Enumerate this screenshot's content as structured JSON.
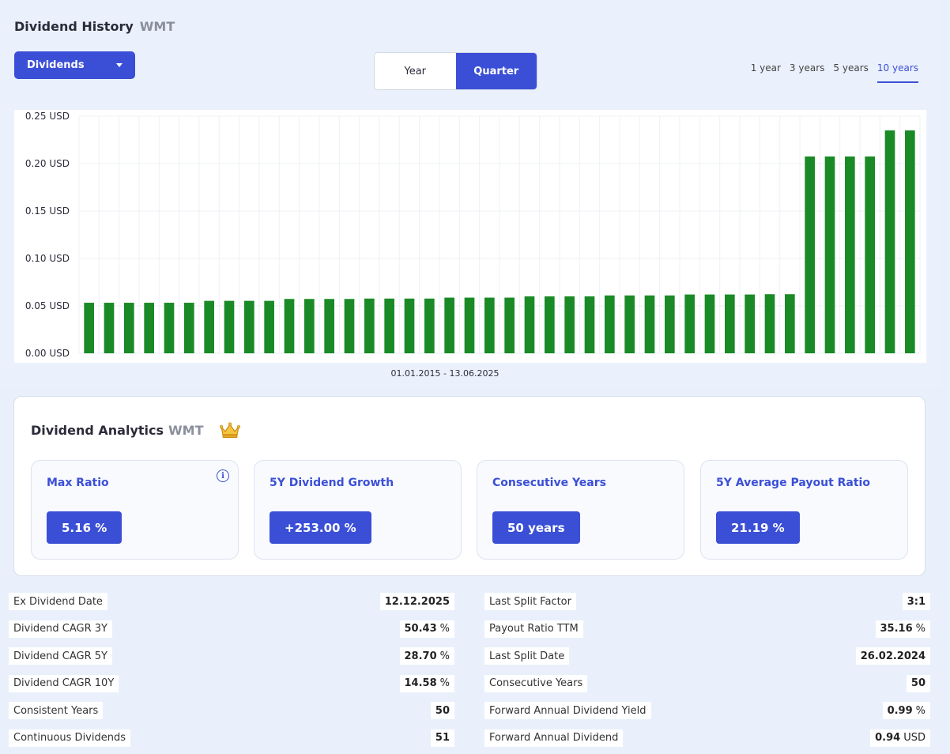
{
  "history": {
    "title": "Dividend History",
    "ticker": "WMT",
    "select_value": "Dividends",
    "period_tabs": [
      "Year",
      "Quarter"
    ],
    "period_active": "Quarter",
    "ranges": [
      "1 year",
      "3 years",
      "5 years",
      "10 years"
    ],
    "range_active": "10 years",
    "date_range": "01.01.2015 - 13.06.2025"
  },
  "chart_data": {
    "type": "bar",
    "title": "",
    "xlabel": "01.01.2015 - 13.06.2025",
    "ylabel": "",
    "ylim": [
      0,
      0.25
    ],
    "yticks": [
      "0.00 USD",
      "0.05 USD",
      "0.10 USD",
      "0.15 USD",
      "0.20 USD",
      "0.25 USD"
    ],
    "grid": true,
    "color": "#1a8a26",
    "values": [
      0.0533,
      0.0533,
      0.0533,
      0.0533,
      0.0533,
      0.0533,
      0.0553,
      0.0553,
      0.0553,
      0.0553,
      0.0573,
      0.0573,
      0.0573,
      0.0573,
      0.0577,
      0.0577,
      0.0577,
      0.0577,
      0.0587,
      0.0587,
      0.0587,
      0.0587,
      0.06,
      0.06,
      0.06,
      0.06,
      0.061,
      0.061,
      0.061,
      0.061,
      0.062,
      0.062,
      0.062,
      0.062,
      0.0623,
      0.0623,
      0.2075,
      0.2075,
      0.2075,
      0.2075,
      0.235,
      0.235
    ]
  },
  "analytics": {
    "title": "Dividend Analytics",
    "ticker": "WMT",
    "cards": [
      {
        "label": "Max Ratio",
        "value": "5.16 %"
      },
      {
        "label": "5Y Dividend Growth",
        "value": "+253.00 %"
      },
      {
        "label": "Consecutive Years",
        "value": "50 years"
      },
      {
        "label": "5Y Average Payout Ratio",
        "value": "21.19 %"
      }
    ]
  },
  "stats": {
    "left": [
      {
        "label": "Ex Dividend Date",
        "value": "12.12.2025",
        "unit": ""
      },
      {
        "label": "Dividend CAGR 3Y",
        "value": "50.43",
        "unit": "%"
      },
      {
        "label": "Dividend CAGR 5Y",
        "value": "28.70",
        "unit": "%"
      },
      {
        "label": "Dividend CAGR 10Y",
        "value": "14.58",
        "unit": "%"
      },
      {
        "label": "Consistent Years",
        "value": "50",
        "unit": ""
      },
      {
        "label": "Continuous Dividends",
        "value": "51",
        "unit": ""
      }
    ],
    "right": [
      {
        "label": "Last Split Factor",
        "value": "3:1",
        "unit": ""
      },
      {
        "label": "Payout Ratio TTM",
        "value": "35.16",
        "unit": "%"
      },
      {
        "label": "Last Split Date",
        "value": "26.02.2024",
        "unit": ""
      },
      {
        "label": "Consecutive Years",
        "value": "50",
        "unit": ""
      },
      {
        "label": "Forward Annual Dividend Yield",
        "value": "0.99",
        "unit": "%"
      },
      {
        "label": "Forward Annual Dividend",
        "value": "0.94",
        "unit": "USD"
      }
    ]
  }
}
